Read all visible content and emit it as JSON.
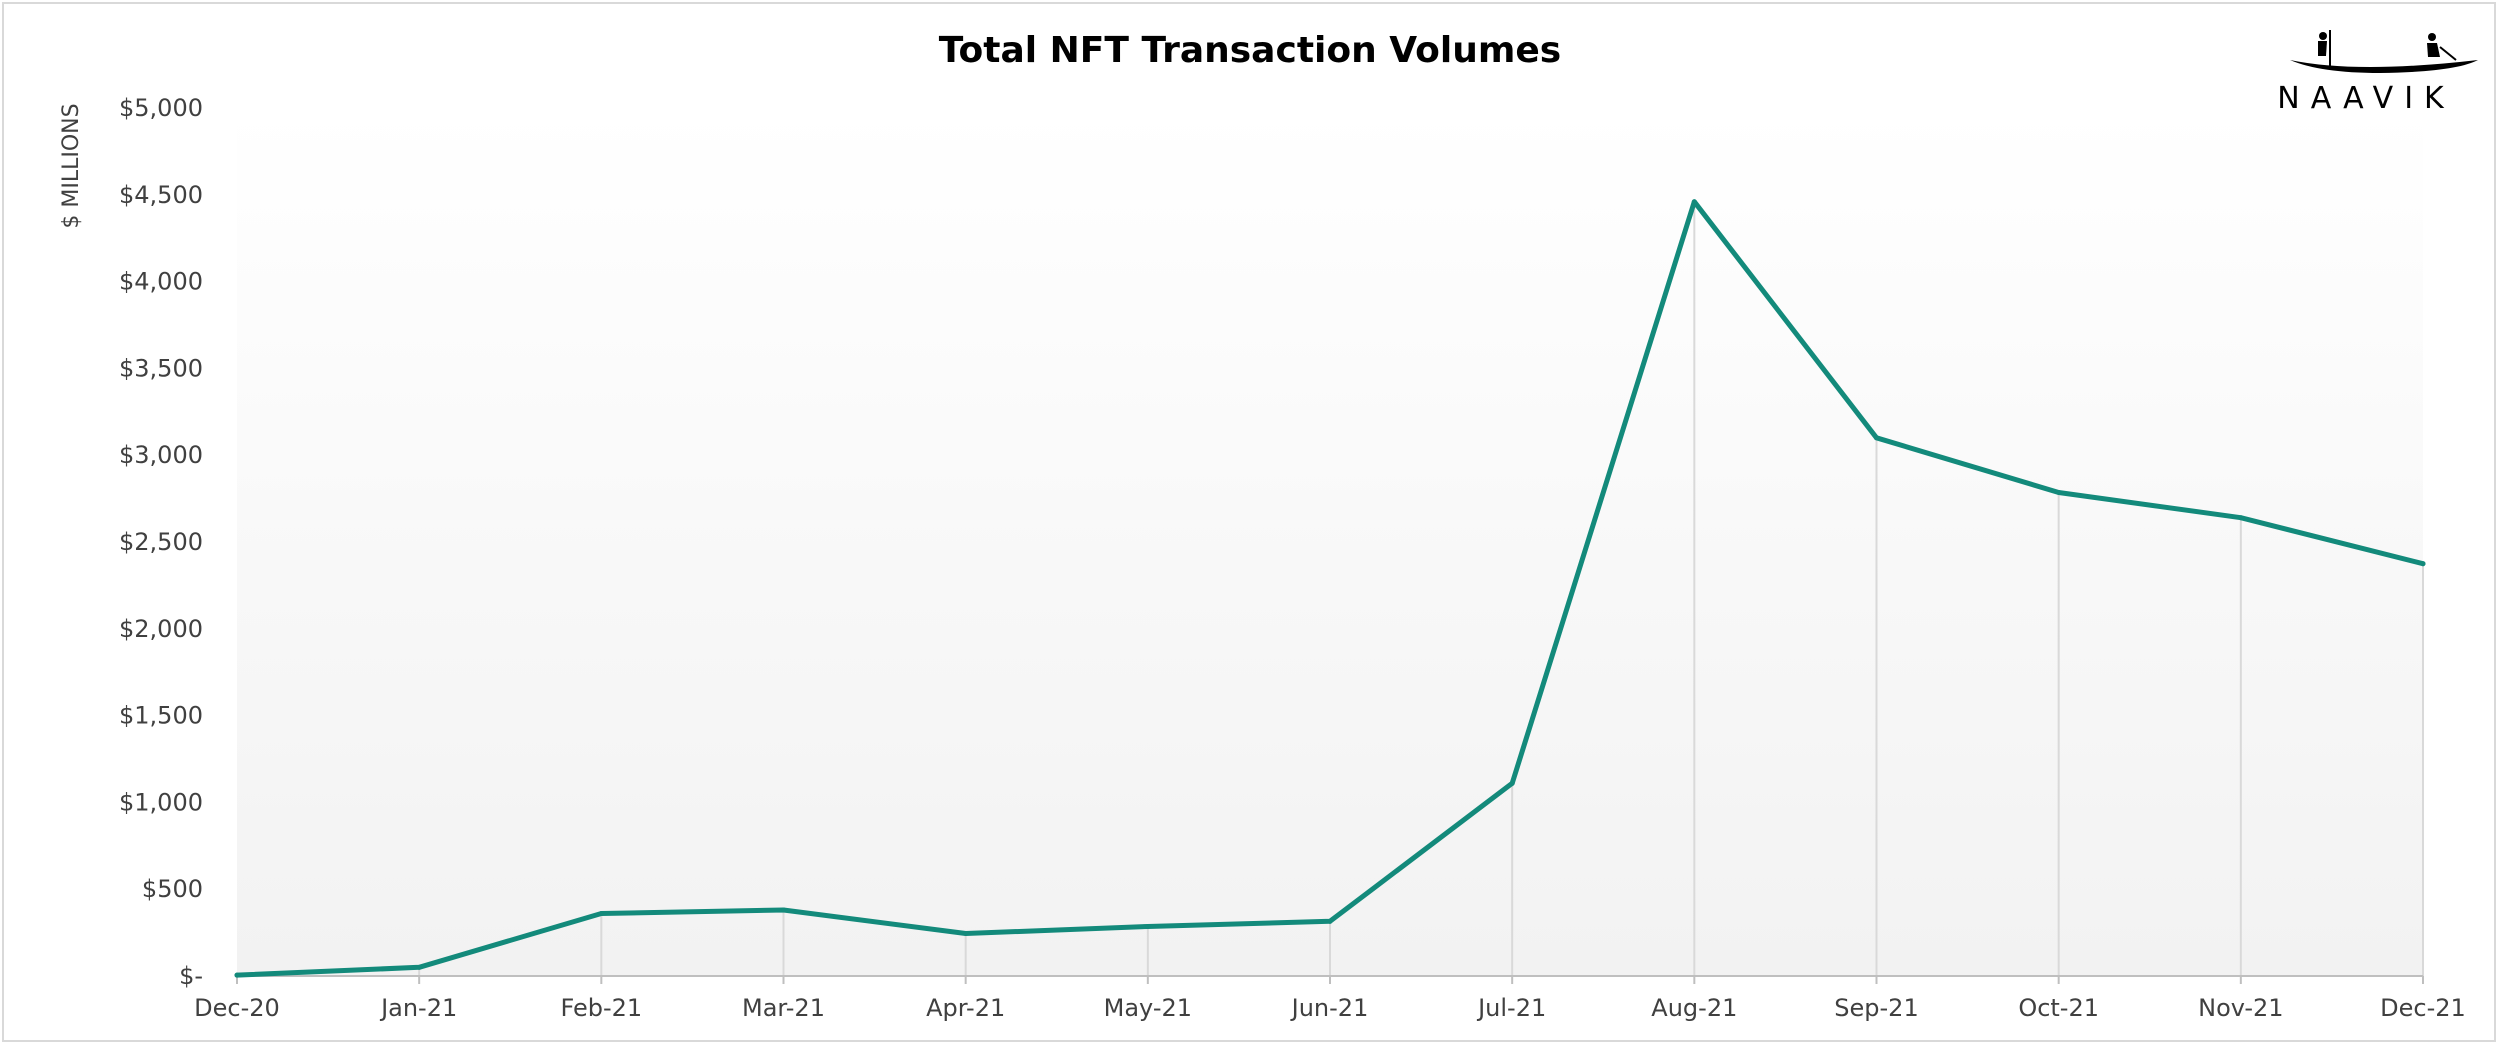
{
  "chart_data": {
    "type": "line",
    "title": "Total NFT Transaction Volumes",
    "xlabel": "",
    "ylabel": "$ MILLIONS",
    "x": [
      "Dec-20",
      "Jan-21",
      "Feb-21",
      "Mar-21",
      "Apr-21",
      "May-21",
      "Jun-21",
      "Jul-21",
      "Aug-21",
      "Sep-21",
      "Oct-21",
      "Nov-21",
      "Dec-21"
    ],
    "series": [
      {
        "values": [
          5,
          50,
          360,
          380,
          245,
          285,
          315,
          1110,
          4460,
          3100,
          2785,
          2640,
          2375
        ],
        "color": "#138a7b"
      }
    ],
    "ylim": [
      0,
      5000
    ],
    "yticks": [
      0,
      500,
      1000,
      1500,
      2000,
      2500,
      3000,
      3500,
      4000,
      4500,
      5000
    ],
    "ytick_labels": [
      "$-",
      "$500",
      "$1,000",
      "$1,500",
      "$2,000",
      "$2,500",
      "$3,000",
      "$3,500",
      "$4,000",
      "$4,500",
      "$5,000"
    ],
    "grid": "vertical drop lines at each x",
    "legend": "none"
  },
  "brand": {
    "name": "NAAVIK",
    "logo_icon": "boat-rowers-icon"
  }
}
